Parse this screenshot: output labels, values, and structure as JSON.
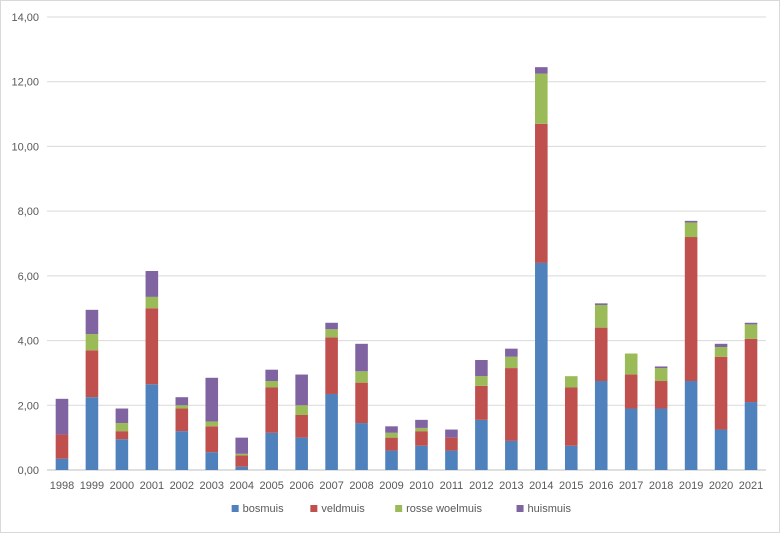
{
  "chart_data": {
    "type": "bar",
    "stacked": true,
    "title": "",
    "xlabel": "",
    "ylabel": "",
    "ylim": [
      0,
      14
    ],
    "yticks": [
      "0,00",
      "2,00",
      "4,00",
      "6,00",
      "8,00",
      "10,00",
      "12,00",
      "14,00"
    ],
    "grid": true,
    "legend_position": "bottom",
    "categories": [
      "1998",
      "1999",
      "2000",
      "2001",
      "2002",
      "2003",
      "2004",
      "2005",
      "2006",
      "2007",
      "2008",
      "2009",
      "2010",
      "2011",
      "2012",
      "2013",
      "2014",
      "2015",
      "2016",
      "2017",
      "2018",
      "2019",
      "2020",
      "2021"
    ],
    "series": [
      {
        "name": "bosmuis",
        "color": "#4f81bd",
        "values": [
          0.35,
          2.25,
          0.95,
          2.65,
          1.2,
          0.55,
          0.1,
          1.15,
          1.0,
          2.35,
          1.45,
          0.6,
          0.75,
          0.6,
          1.55,
          0.9,
          6.4,
          0.75,
          2.75,
          1.9,
          1.9,
          2.75,
          1.25,
          2.1
        ]
      },
      {
        "name": "veldmuis",
        "color": "#c0504d",
        "values": [
          0.75,
          1.45,
          0.25,
          2.35,
          0.7,
          0.8,
          0.35,
          1.4,
          0.7,
          1.75,
          1.25,
          0.4,
          0.45,
          0.4,
          1.05,
          2.25,
          4.3,
          1.8,
          1.65,
          1.05,
          0.85,
          4.45,
          2.25,
          1.95
        ]
      },
      {
        "name": "rosse woelmuis",
        "color": "#9bbb59",
        "values": [
          0.0,
          0.5,
          0.25,
          0.35,
          0.1,
          0.15,
          0.05,
          0.2,
          0.3,
          0.25,
          0.35,
          0.15,
          0.1,
          0.0,
          0.3,
          0.35,
          1.55,
          0.35,
          0.7,
          0.65,
          0.4,
          0.45,
          0.3,
          0.45
        ]
      },
      {
        "name": "huismuis",
        "color": "#8064a2",
        "values": [
          1.1,
          0.75,
          0.45,
          0.8,
          0.25,
          1.35,
          0.5,
          0.35,
          0.95,
          0.2,
          0.85,
          0.2,
          0.25,
          0.25,
          0.5,
          0.25,
          0.2,
          0.0,
          0.05,
          0.0,
          0.05,
          0.05,
          0.1,
          0.05
        ]
      }
    ]
  }
}
